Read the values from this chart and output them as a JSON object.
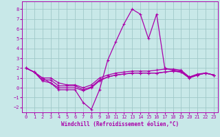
{
  "xlabel": "Windchill (Refroidissement éolien,°C)",
  "xlim": [
    -0.5,
    23.5
  ],
  "ylim": [
    -2.5,
    8.8
  ],
  "yticks": [
    -2,
    -1,
    0,
    1,
    2,
    3,
    4,
    5,
    6,
    7,
    8
  ],
  "xticks": [
    0,
    1,
    2,
    3,
    4,
    5,
    6,
    7,
    8,
    9,
    10,
    11,
    12,
    13,
    14,
    15,
    16,
    17,
    18,
    19,
    20,
    21,
    22,
    23
  ],
  "bg_color": "#c8e8e8",
  "grid_color": "#a0c8c8",
  "line_color": "#aa00aa",
  "lines": [
    [
      2.0,
      1.6,
      1.0,
      0.5,
      -0.2,
      -0.2,
      -0.2,
      -1.5,
      -2.2,
      -0.2,
      2.8,
      4.7,
      6.5,
      8.0,
      7.5,
      5.0,
      7.5,
      2.0,
      1.8,
      1.7,
      1.1,
      1.3,
      1.5,
      1.3
    ],
    [
      2.0,
      1.6,
      1.0,
      1.0,
      0.5,
      0.3,
      0.3,
      0.0,
      0.3,
      1.0,
      1.3,
      1.5,
      1.6,
      1.7,
      1.7,
      1.7,
      1.8,
      1.9,
      1.9,
      1.8,
      1.1,
      1.4,
      1.5,
      1.3
    ],
    [
      2.0,
      1.6,
      0.8,
      0.8,
      0.2,
      0.2,
      0.2,
      -0.2,
      0.1,
      0.8,
      1.1,
      1.3,
      1.4,
      1.5,
      1.5,
      1.5,
      1.5,
      1.6,
      1.7,
      1.6,
      1.0,
      1.3,
      1.5,
      1.3
    ],
    [
      2.0,
      1.6,
      0.7,
      0.5,
      0.0,
      0.0,
      0.0,
      -0.3,
      0.0,
      0.7,
      1.1,
      1.3,
      1.4,
      1.5,
      1.5,
      1.5,
      1.5,
      1.6,
      1.7,
      1.6,
      1.0,
      1.3,
      1.5,
      1.3
    ]
  ]
}
